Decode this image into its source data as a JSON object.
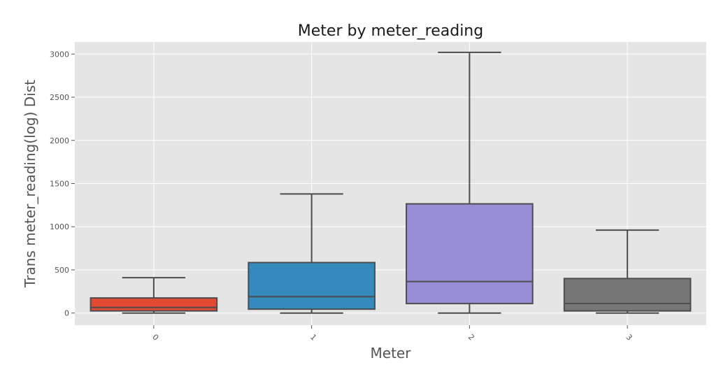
{
  "chart_data": {
    "type": "box",
    "title": "Meter by meter_reading",
    "xlabel": "Meter",
    "ylabel": "Trans meter_reading(log) Dist",
    "categories": [
      "0",
      "1",
      "2",
      "3"
    ],
    "ylim": [
      -140,
      3140
    ],
    "yticks": [
      0,
      500,
      1000,
      1500,
      2000,
      2500,
      3000
    ],
    "grid": true,
    "boxes": [
      {
        "category": "0",
        "whisker_low": 0,
        "q1": 25,
        "median": 65,
        "q3": 175,
        "whisker_high": 410,
        "color": "#E24A33"
      },
      {
        "category": "1",
        "whisker_low": 0,
        "q1": 45,
        "median": 190,
        "q3": 585,
        "whisker_high": 1380,
        "color": "#348ABD"
      },
      {
        "category": "2",
        "whisker_low": 0,
        "q1": 110,
        "median": 365,
        "q3": 1265,
        "whisker_high": 3020,
        "color": "#988ED5"
      },
      {
        "category": "3",
        "whisker_low": 0,
        "q1": 25,
        "median": 110,
        "q3": 400,
        "whisker_high": 960,
        "color": "#777777"
      }
    ]
  },
  "colors": {
    "plot_background": "#E5E5E5",
    "grid": "#FFFFFF",
    "box_edge": "#4D4D4D"
  }
}
